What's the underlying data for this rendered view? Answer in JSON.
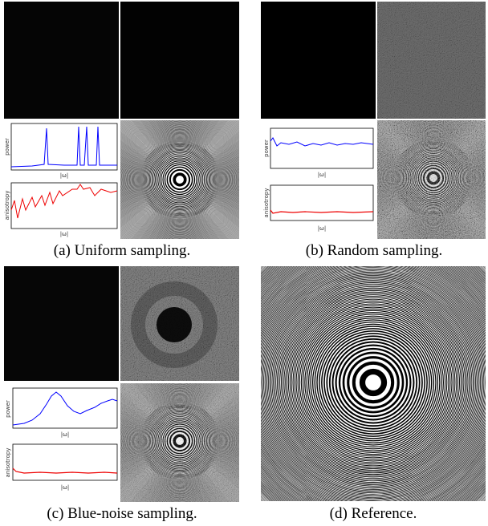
{
  "panels": [
    {
      "caption": "(a) Uniform sampling.",
      "power": "power",
      "anisotropy": "anisotropy",
      "freq": "|ω|"
    },
    {
      "caption": "(b) Random sampling.",
      "power": "power",
      "anisotropy": "anisotropy",
      "freq": "|ω|"
    },
    {
      "caption": "(c) Blue-noise sampling.",
      "power": "power",
      "anisotropy": "anisotropy",
      "freq": "|ω|"
    },
    {
      "caption": "(d) Reference."
    }
  ]
}
